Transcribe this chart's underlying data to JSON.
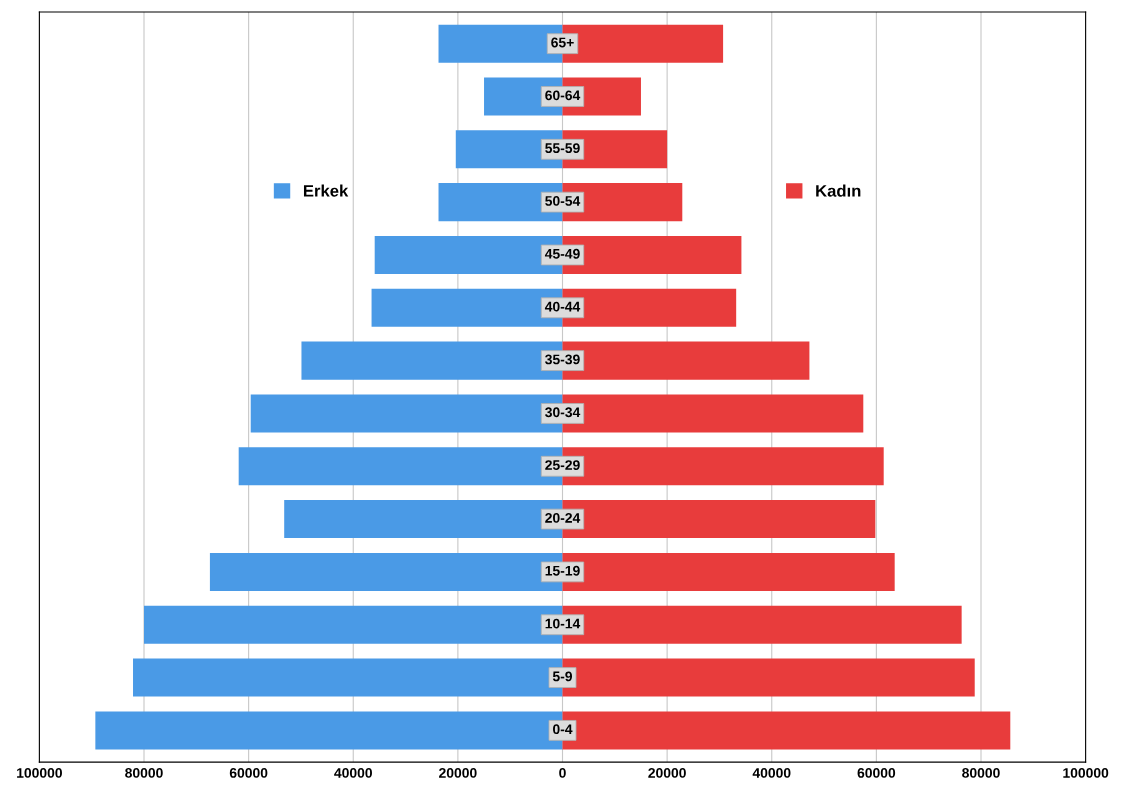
{
  "chart_data": {
    "type": "bar",
    "orientation": "horizontal",
    "categories": [
      "65+",
      "60-64",
      "55-59",
      "50-54",
      "45-49",
      "40-44",
      "35-39",
      "30-34",
      "25-29",
      "20-24",
      "15-19",
      "10-14",
      "5-9",
      "0-4"
    ],
    "series": [
      {
        "name": "Erkek",
        "color": "#4a9ae6",
        "values": [
          -23700,
          -15000,
          -20400,
          -23700,
          -35900,
          -36500,
          -49900,
          -59600,
          -61900,
          -53200,
          -67400,
          -80000,
          -82100,
          -89300
        ]
      },
      {
        "name": "Kadın",
        "color": "#e83c3c",
        "values": [
          30700,
          15000,
          20000,
          22900,
          34200,
          33200,
          47200,
          57500,
          61400,
          59800,
          63500,
          76300,
          78800,
          85600
        ]
      }
    ],
    "xlim": [
      -100000,
      100000
    ],
    "xticks": [
      {
        "value": -100000,
        "label": "100000"
      },
      {
        "value": -80000,
        "label": "80000"
      },
      {
        "value": -60000,
        "label": "60000"
      },
      {
        "value": -40000,
        "label": "40000"
      },
      {
        "value": -20000,
        "label": "20000"
      },
      0,
      20000,
      40000,
      60000,
      80000,
      100000
    ],
    "grid": "x",
    "legend": "top",
    "stacked": true
  }
}
